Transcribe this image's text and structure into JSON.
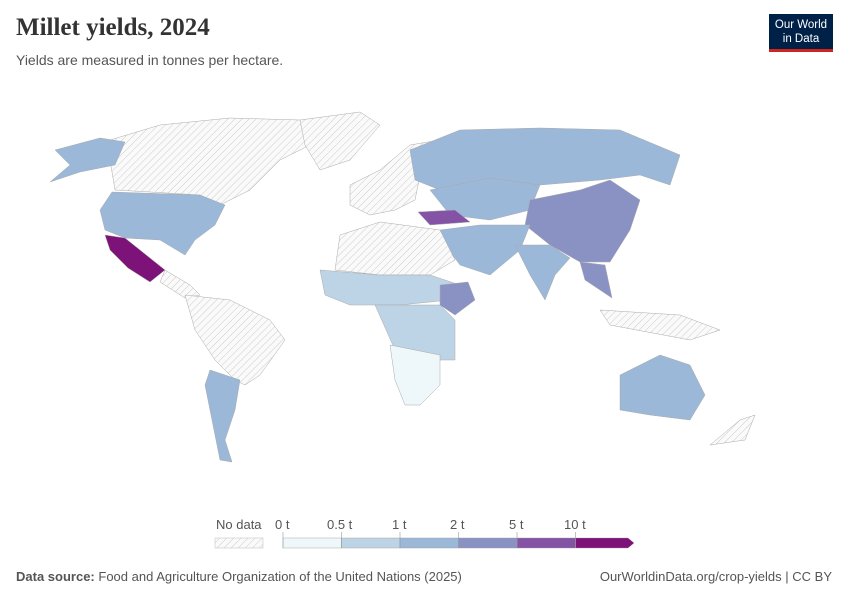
{
  "header": {
    "title": "Millet yields, 2024",
    "subtitle": "Yields are measured in tonnes per hectare.",
    "logo": "Our World in Data"
  },
  "legend": {
    "no_data_label": "No data",
    "bins": [
      "0 t",
      "0.5 t",
      "1 t",
      "2 t",
      "5 t",
      "10 t"
    ],
    "colors": [
      "#eef7fa",
      "#bdd3e6",
      "#9bb8d9",
      "#8a92c4",
      "#8553a5",
      "#7d1278"
    ],
    "no_data_color": "#f2f2f2"
  },
  "footer": {
    "source_label": "Data source:",
    "source": "Food and Agriculture Organization of the United Nations (2025)",
    "link": "OurWorldinData.org/crop-yields | CC BY"
  }
}
